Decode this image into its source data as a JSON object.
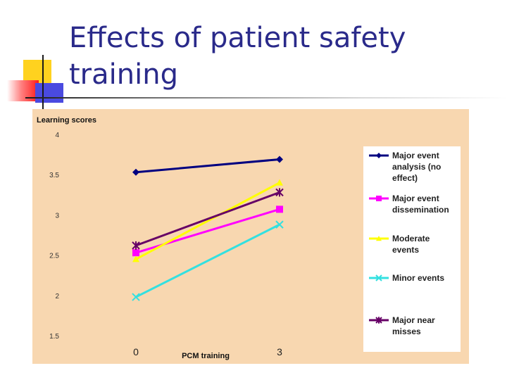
{
  "slide": {
    "title": "Effects of patient safety training"
  },
  "chart_data": {
    "type": "line",
    "ylabel": "Learning scores",
    "xlabel": "PCM training",
    "categories": [
      "0",
      "3"
    ],
    "ylim": [
      1.5,
      4
    ],
    "yticks": [
      1.5,
      2,
      2.5,
      3,
      3.5,
      4
    ],
    "ytick_labels": [
      "1.5",
      "2",
      "2.5",
      "3",
      "3.5",
      "4"
    ],
    "grid": false,
    "legend_position": "right",
    "series": [
      {
        "name": "Major event analysis (no effect)",
        "name_lines": [
          "Major event",
          "analysis (no",
          "effect)"
        ],
        "values": [
          3.53,
          3.69
        ],
        "color": "#000080",
        "marker": "diamond"
      },
      {
        "name": "Major event dissemination",
        "name_lines": [
          "Major event",
          "dissemination"
        ],
        "values": [
          2.53,
          3.07
        ],
        "color": "#ff00ff",
        "marker": "square"
      },
      {
        "name": "Moderate events",
        "name_lines": [
          "Moderate",
          "events"
        ],
        "values": [
          2.45,
          3.4
        ],
        "color": "#ffff00",
        "marker": "triangle"
      },
      {
        "name": "Minor events",
        "name_lines": [
          "Minor events"
        ],
        "values": [
          1.98,
          2.88
        ],
        "color": "#33e0e0",
        "marker": "x"
      },
      {
        "name": "Major near misses",
        "name_lines": [
          "Major near",
          "misses"
        ],
        "values": [
          2.62,
          3.28
        ],
        "color": "#660066",
        "marker": "star"
      }
    ]
  }
}
